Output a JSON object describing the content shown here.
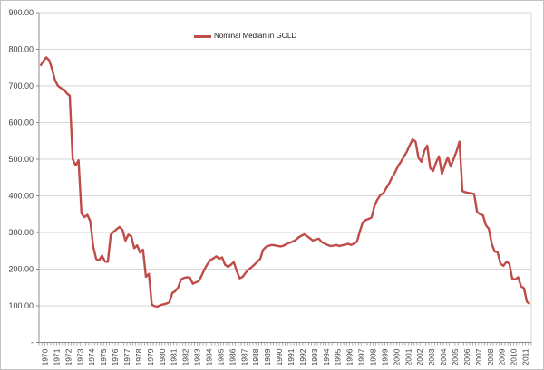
{
  "chart_data": {
    "type": "line",
    "title": "",
    "legend": {
      "position": "top-center"
    },
    "line_color": "#BE4C48",
    "gridline_color": "#D6D6D6",
    "axis_color": "#8C8C8C",
    "label_color": "#404040",
    "grid": true,
    "ylim": [
      0,
      900
    ],
    "y_tick_step": 100,
    "y_tick_labels": [
      "-",
      "100.00",
      "200.00",
      "300.00",
      "400.00",
      "500.00",
      "600.00",
      "700.00",
      "800.00",
      "900.00"
    ],
    "x_frequency": "quarterly",
    "categories": [
      "1970",
      "1971",
      "1972",
      "1973",
      "1974",
      "1975",
      "1976",
      "1977",
      "1978",
      "1979",
      "1980",
      "1981",
      "1982",
      "1983",
      "1984",
      "1985",
      "1986",
      "1987",
      "1988",
      "1989",
      "1990",
      "1991",
      "1992",
      "1993",
      "1994",
      "1995",
      "1996",
      "1997",
      "1998",
      "1999",
      "2000",
      "2001",
      "2002",
      "2003",
      "2004",
      "2005",
      "2006",
      "2007",
      "2008",
      "2009",
      "2010",
      "2011"
    ],
    "series": [
      {
        "name": "Nominal Median in GOLD",
        "values": [
          755,
          768,
          778,
          770,
          745,
          715,
          700,
          694,
          690,
          680,
          673,
          500,
          483,
          497,
          352,
          342,
          348,
          331,
          262,
          228,
          224,
          237,
          221,
          220,
          294,
          302,
          309,
          315,
          307,
          278,
          294,
          290,
          257,
          265,
          245,
          253,
          179,
          187,
          103,
          99,
          98,
          102,
          104,
          106,
          110,
          135,
          140,
          150,
          172,
          176,
          178,
          177,
          160,
          164,
          167,
          182,
          200,
          214,
          225,
          229,
          235,
          228,
          232,
          212,
          206,
          212,
          219,
          194,
          175,
          179,
          190,
          199,
          205,
          212,
          220,
          228,
          253,
          261,
          264,
          266,
          265,
          263,
          262,
          264,
          269,
          272,
          275,
          279,
          286,
          291,
          295,
          290,
          284,
          278,
          281,
          283,
          274,
          270,
          266,
          263,
          264,
          266,
          263,
          265,
          267,
          269,
          266,
          270,
          275,
          303,
          328,
          334,
          337,
          341,
          373,
          390,
          402,
          407,
          421,
          434,
          451,
          464,
          481,
          493,
          507,
          520,
          538,
          554,
          548,
          504,
          493,
          523,
          537,
          476,
          468,
          491,
          508,
          460,
          484,
          505,
          480,
          501,
          522,
          548,
          413,
          410,
          408,
          407,
          405,
          356,
          350,
          347,
          320,
          310,
          269,
          248,
          246,
          215,
          209,
          220,
          215,
          174,
          172,
          178,
          153,
          148,
          111,
          105
        ]
      }
    ]
  }
}
